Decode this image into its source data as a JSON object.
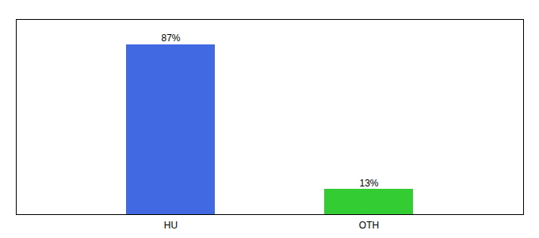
{
  "chart_data": {
    "type": "bar",
    "categories": [
      "HU",
      "OTH"
    ],
    "values": [
      87,
      13
    ],
    "colors": [
      "#4169e1",
      "#33cc33"
    ],
    "value_labels": [
      "87%",
      "13%"
    ],
    "data_labels": true,
    "ylim": [
      0,
      100
    ],
    "tick_labels": "x"
  }
}
